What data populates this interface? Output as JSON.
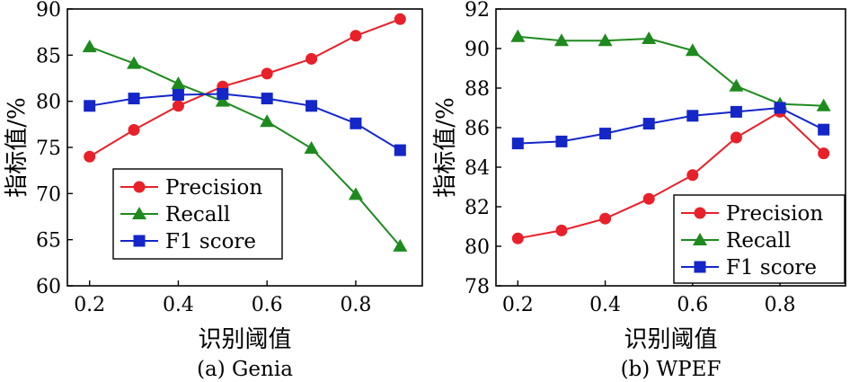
{
  "colors": {
    "precision": "#e8202a",
    "recall": "#1e8a1e",
    "f1": "#1426c8"
  },
  "chart_data": [
    {
      "type": "line",
      "caption": "(a) Genia",
      "xlabel": "识别阈值",
      "ylabel": "指标值/%",
      "x": [
        0.2,
        0.3,
        0.4,
        0.5,
        0.6,
        0.7,
        0.8,
        0.9
      ],
      "xticks": [
        "0.2",
        "0.4",
        "0.6",
        "0.8"
      ],
      "xtick_values": [
        0.2,
        0.4,
        0.6,
        0.8
      ],
      "xlim": [
        0.15,
        0.95
      ],
      "ylim": [
        60,
        90
      ],
      "yticks": [
        "60",
        "65",
        "70",
        "75",
        "80",
        "85",
        "90"
      ],
      "ytick_values": [
        60,
        65,
        70,
        75,
        80,
        85,
        90
      ],
      "legend_position": "lower-left",
      "series": [
        {
          "name": "Precision",
          "marker": "circle",
          "color": "#e8202a",
          "values": [
            74.0,
            76.9,
            79.5,
            81.6,
            83.0,
            84.6,
            87.1,
            88.9
          ]
        },
        {
          "name": "Recall",
          "marker": "triangle",
          "color": "#1e8a1e",
          "values": [
            85.9,
            84.1,
            81.9,
            80.0,
            77.8,
            74.9,
            69.9,
            64.3
          ]
        },
        {
          "name": "F1 score",
          "marker": "square",
          "color": "#1426c8",
          "values": [
            79.5,
            80.3,
            80.7,
            80.8,
            80.3,
            79.5,
            77.6,
            74.7
          ]
        }
      ]
    },
    {
      "type": "line",
      "caption": "(b) WPEF",
      "xlabel": "识别阈值",
      "ylabel": "指标值/%",
      "x": [
        0.2,
        0.3,
        0.4,
        0.5,
        0.6,
        0.7,
        0.8,
        0.9
      ],
      "xticks": [
        "0.2",
        "0.4",
        "0.6",
        "0.8"
      ],
      "xtick_values": [
        0.2,
        0.4,
        0.6,
        0.8
      ],
      "xlim": [
        0.15,
        0.95
      ],
      "ylim": [
        78,
        92
      ],
      "yticks": [
        "78",
        "80",
        "82",
        "84",
        "86",
        "88",
        "90",
        "92"
      ],
      "ytick_values": [
        78,
        80,
        82,
        84,
        86,
        88,
        90,
        92
      ],
      "legend_position": "lower-right",
      "series": [
        {
          "name": "Precision",
          "marker": "circle",
          "color": "#e8202a",
          "values": [
            80.4,
            80.8,
            81.4,
            82.4,
            83.6,
            85.5,
            86.8,
            84.7
          ]
        },
        {
          "name": "Recall",
          "marker": "triangle",
          "color": "#1e8a1e",
          "values": [
            90.6,
            90.4,
            90.4,
            90.5,
            89.9,
            88.1,
            87.2,
            87.1
          ]
        },
        {
          "name": "F1 score",
          "marker": "square",
          "color": "#1426c8",
          "values": [
            85.2,
            85.3,
            85.7,
            86.2,
            86.6,
            86.8,
            87.0,
            85.9
          ]
        }
      ]
    }
  ]
}
